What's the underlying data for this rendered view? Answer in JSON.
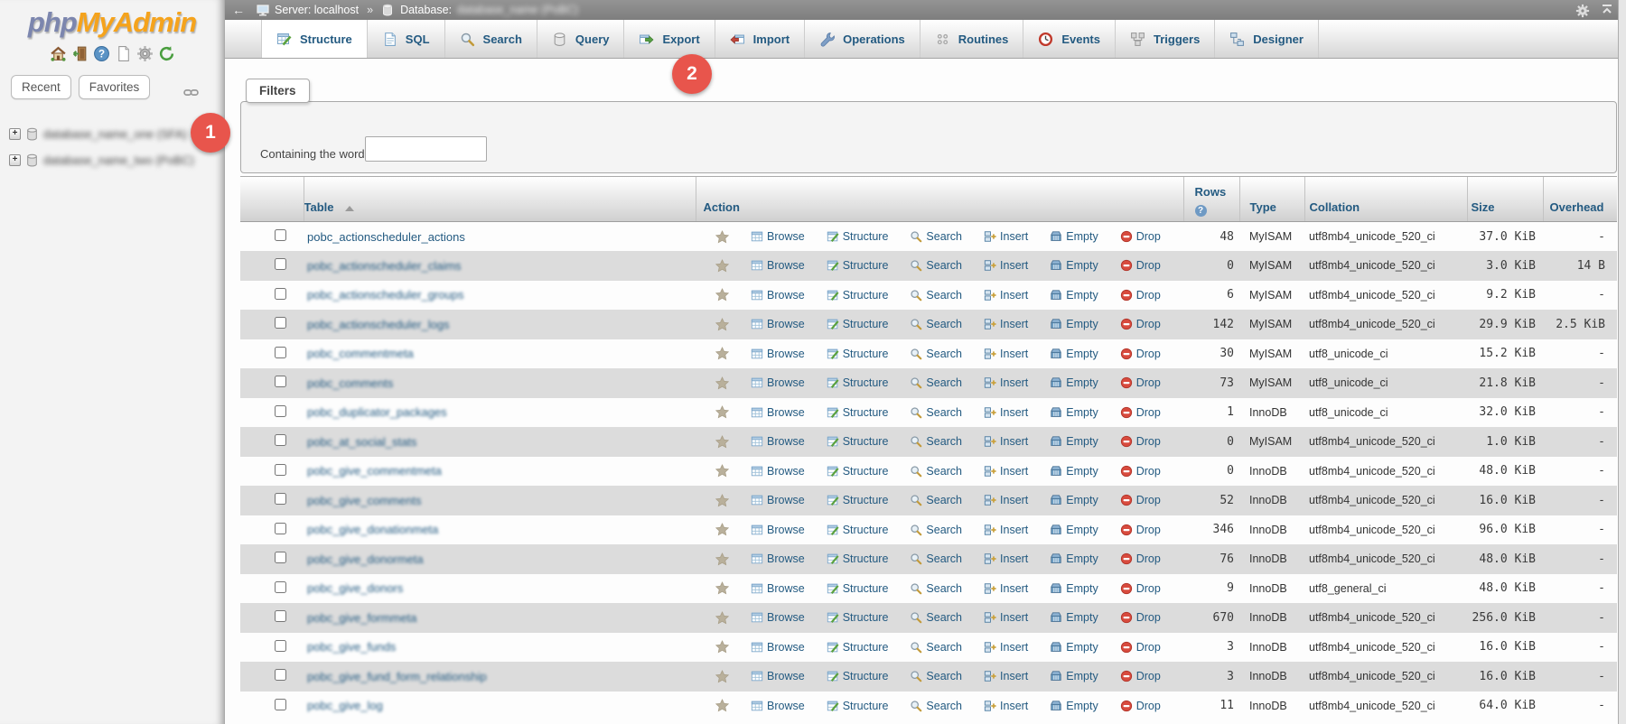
{
  "colors": {
    "accent_blue": "#235a81",
    "annotation_red": "#e8554c",
    "logo_blue": "#7c86ae",
    "logo_orange": "#f5a31c",
    "breadcrumb_gray": "#868686",
    "row_alt_gray": "#dcdcdc"
  },
  "sidebar": {
    "logo": {
      "part1": "php",
      "part2": "MyAdmin"
    },
    "icons": [
      "home-icon",
      "logout-icon",
      "help-icon",
      "docs-icon",
      "settings-icon",
      "refresh-icon"
    ],
    "nav_buttons": [
      "Recent",
      "Favorites"
    ],
    "tree_items": [
      {
        "label": "database_name_one (SFA)",
        "blurred": true
      },
      {
        "label": "database_name_two (PoBC)",
        "blurred": true
      }
    ]
  },
  "annotations": {
    "step1": "1",
    "step2": "2"
  },
  "breadcrumb": {
    "back_arrow": "←",
    "server_label": "Server: localhost",
    "separator": "»",
    "database_label": "Database:",
    "database_name": "database_name (PoBC)",
    "database_name_blurred": true
  },
  "tabs": [
    {
      "label": "Structure",
      "icon": "structure-icon",
      "active": true
    },
    {
      "label": "SQL",
      "icon": "sql-icon",
      "active": false
    },
    {
      "label": "Search",
      "icon": "search-icon",
      "active": false
    },
    {
      "label": "Query",
      "icon": "query-icon",
      "active": false
    },
    {
      "label": "Export",
      "icon": "export-icon",
      "active": false
    },
    {
      "label": "Import",
      "icon": "import-icon",
      "active": false
    },
    {
      "label": "Operations",
      "icon": "operations-icon",
      "active": false
    },
    {
      "label": "Routines",
      "icon": "routines-icon",
      "active": false
    },
    {
      "label": "Events",
      "icon": "events-icon",
      "active": false
    },
    {
      "label": "Triggers",
      "icon": "triggers-icon",
      "active": false
    },
    {
      "label": "Designer",
      "icon": "designer-icon",
      "active": false
    }
  ],
  "filters": {
    "legend": "Filters",
    "label": "Containing the word:",
    "value": ""
  },
  "table": {
    "headers": {
      "table": "Table",
      "action": "Action",
      "rows": "Rows",
      "type": "Type",
      "collation": "Collation",
      "size": "Size",
      "overhead": "Overhead"
    },
    "help_glyph": "?",
    "actions": [
      {
        "label": "Browse",
        "icon": "browse-icon"
      },
      {
        "label": "Structure",
        "icon": "structure-action-icon"
      },
      {
        "label": "Search",
        "icon": "search-action-icon"
      },
      {
        "label": "Insert",
        "icon": "insert-icon"
      },
      {
        "label": "Empty",
        "icon": "empty-icon"
      },
      {
        "label": "Drop",
        "icon": "drop-icon"
      }
    ],
    "rows": [
      {
        "name": "pobc_actionscheduler_actions",
        "blurred": false,
        "rows": "48",
        "type": "MyISAM",
        "collation": "utf8mb4_unicode_520_ci",
        "size": "37.0 KiB",
        "overhead": "-"
      },
      {
        "name": "pobc_actionscheduler_claims",
        "blurred": true,
        "rows": "0",
        "type": "MyISAM",
        "collation": "utf8mb4_unicode_520_ci",
        "size": "3.0 KiB",
        "overhead": "14 B"
      },
      {
        "name": "pobc_actionscheduler_groups",
        "blurred": true,
        "rows": "6",
        "type": "MyISAM",
        "collation": "utf8mb4_unicode_520_ci",
        "size": "9.2 KiB",
        "overhead": "-"
      },
      {
        "name": "pobc_actionscheduler_logs",
        "blurred": true,
        "rows": "142",
        "type": "MyISAM",
        "collation": "utf8mb4_unicode_520_ci",
        "size": "29.9 KiB",
        "overhead": "2.5 KiB"
      },
      {
        "name": "pobc_commentmeta",
        "blurred": true,
        "rows": "30",
        "type": "MyISAM",
        "collation": "utf8_unicode_ci",
        "size": "15.2 KiB",
        "overhead": "-"
      },
      {
        "name": "pobc_comments",
        "blurred": true,
        "rows": "73",
        "type": "MyISAM",
        "collation": "utf8_unicode_ci",
        "size": "21.8 KiB",
        "overhead": "-"
      },
      {
        "name": "pobc_duplicator_packages",
        "blurred": true,
        "rows": "1",
        "type": "InnoDB",
        "collation": "utf8_unicode_ci",
        "size": "32.0 KiB",
        "overhead": "-"
      },
      {
        "name": "pobc_at_social_stats",
        "blurred": true,
        "rows": "0",
        "type": "MyISAM",
        "collation": "utf8mb4_unicode_520_ci",
        "size": "1.0 KiB",
        "overhead": "-"
      },
      {
        "name": "pobc_give_commentmeta",
        "blurred": true,
        "rows": "0",
        "type": "InnoDB",
        "collation": "utf8mb4_unicode_520_ci",
        "size": "48.0 KiB",
        "overhead": "-"
      },
      {
        "name": "pobc_give_comments",
        "blurred": true,
        "rows": "52",
        "type": "InnoDB",
        "collation": "utf8mb4_unicode_520_ci",
        "size": "16.0 KiB",
        "overhead": "-"
      },
      {
        "name": "pobc_give_donationmeta",
        "blurred": true,
        "rows": "346",
        "type": "InnoDB",
        "collation": "utf8mb4_unicode_520_ci",
        "size": "96.0 KiB",
        "overhead": "-"
      },
      {
        "name": "pobc_give_donormeta",
        "blurred": true,
        "rows": "76",
        "type": "InnoDB",
        "collation": "utf8mb4_unicode_520_ci",
        "size": "48.0 KiB",
        "overhead": "-"
      },
      {
        "name": "pobc_give_donors",
        "blurred": true,
        "rows": "9",
        "type": "InnoDB",
        "collation": "utf8_general_ci",
        "size": "48.0 KiB",
        "overhead": "-"
      },
      {
        "name": "pobc_give_formmeta",
        "blurred": true,
        "rows": "670",
        "type": "InnoDB",
        "collation": "utf8mb4_unicode_520_ci",
        "size": "256.0 KiB",
        "overhead": "-"
      },
      {
        "name": "pobc_give_funds",
        "blurred": true,
        "rows": "3",
        "type": "InnoDB",
        "collation": "utf8mb4_unicode_520_ci",
        "size": "16.0 KiB",
        "overhead": "-"
      },
      {
        "name": "pobc_give_fund_form_relationship",
        "blurred": true,
        "rows": "3",
        "type": "InnoDB",
        "collation": "utf8mb4_unicode_520_ci",
        "size": "16.0 KiB",
        "overhead": "-"
      },
      {
        "name": "pobc_give_log",
        "blurred": true,
        "rows": "11",
        "type": "InnoDB",
        "collation": "utf8mb4_unicode_520_ci",
        "size": "64.0 KiB",
        "overhead": "-"
      }
    ]
  }
}
